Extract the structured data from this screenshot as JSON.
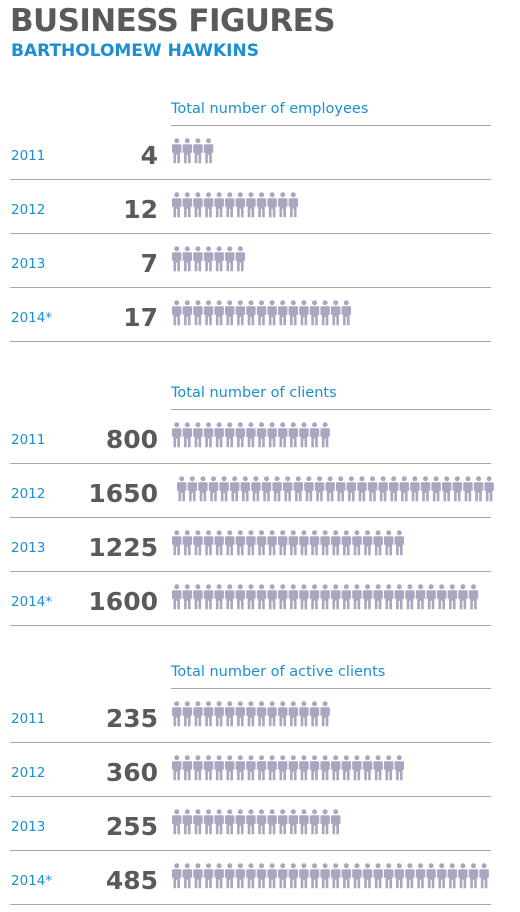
{
  "header": {
    "title": "BUSINESS FIGURES",
    "subtitle": "BARTHOLOMEW HAWKINS"
  },
  "colors": {
    "accent": "#1b8fd1",
    "number": "#5a5a5a",
    "person_icon": "#a9a6bf",
    "divider": "#a7a7a7"
  },
  "icon": "person-icon",
  "chart_data": [
    {
      "type": "bar",
      "title": "Total number of employees",
      "categories": [
        "2011",
        "2012",
        "2013",
        "2014*"
      ],
      "values": [
        4,
        12,
        7,
        17
      ],
      "labels": [
        "4",
        "12",
        "7",
        "17"
      ],
      "icon_counts": [
        4,
        12,
        7,
        17
      ]
    },
    {
      "type": "bar",
      "title": "Total number of clients",
      "categories": [
        "2011",
        "2012",
        "2013",
        "2014*"
      ],
      "values": [
        800,
        1650,
        1225,
        1600
      ],
      "labels": [
        "800",
        "1650",
        "1225",
        "1600"
      ],
      "icon_counts": [
        15,
        30,
        22,
        29
      ]
    },
    {
      "type": "bar",
      "title": "Total number of active clients",
      "categories": [
        "2011",
        "2012",
        "2013",
        "2014*"
      ],
      "values": [
        235,
        360,
        255,
        485
      ],
      "labels": [
        "235",
        "360",
        "255",
        "485"
      ],
      "icon_counts": [
        15,
        22,
        16,
        30
      ]
    }
  ]
}
